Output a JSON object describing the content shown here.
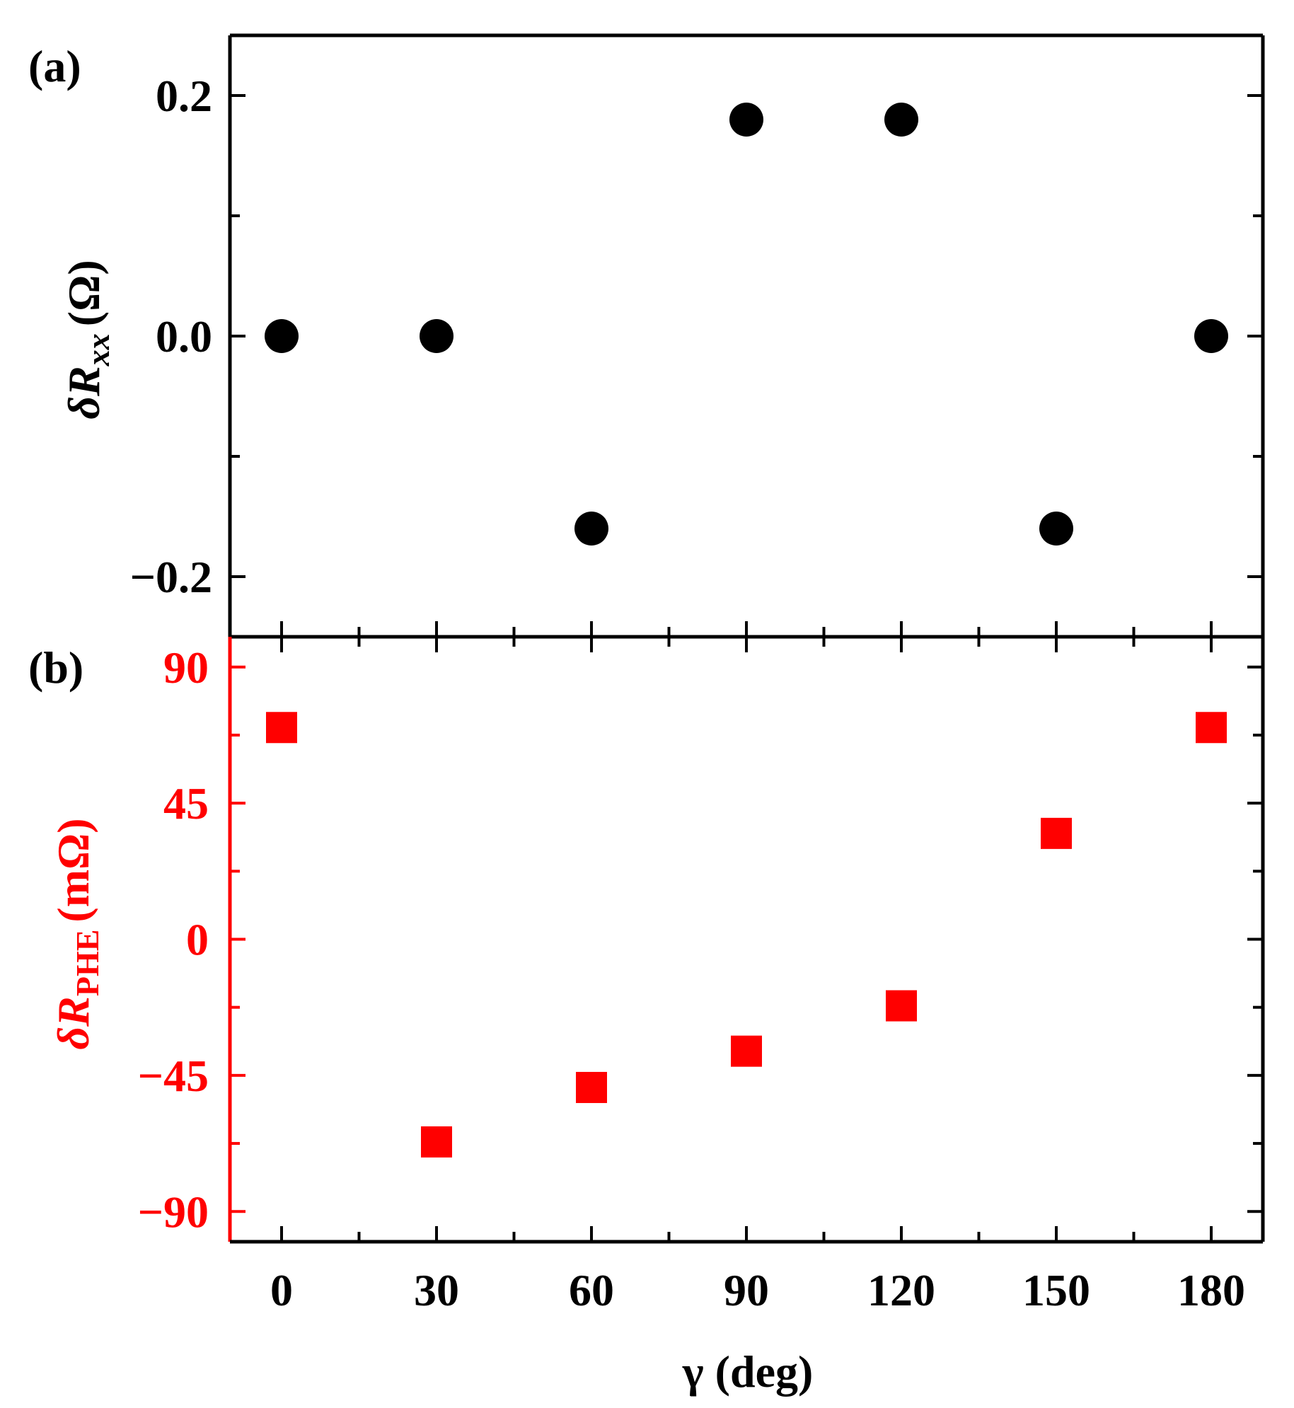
{
  "chart_data": [
    {
      "panel": "(a)",
      "type": "scatter",
      "marker": "circle",
      "color": "#000000",
      "ylabel_symbol": "δR",
      "ylabel_subscript": "xx",
      "ylabel_unit": "(Ω)",
      "ylim": [
        -0.25,
        0.25
      ],
      "yticks": [
        -0.2,
        0.0,
        0.2
      ],
      "ytick_labels": [
        "−0.2",
        "0.0",
        "0.2"
      ],
      "x": [
        0,
        30,
        60,
        90,
        120,
        150,
        180
      ],
      "y": [
        0.0,
        0.0,
        -0.16,
        0.18,
        0.18,
        -0.16,
        0.0
      ]
    },
    {
      "panel": "(b)",
      "type": "scatter",
      "marker": "square",
      "color": "#ff0000",
      "ylabel_symbol": "δR",
      "ylabel_subscript": "PHE",
      "ylabel_unit": "(mΩ)",
      "ylim": [
        -100,
        100
      ],
      "yticks": [
        -90,
        -45,
        0,
        45,
        90
      ],
      "ytick_labels": [
        "−90",
        "−45",
        "0",
        "45",
        "90"
      ],
      "x": [
        0,
        30,
        60,
        90,
        120,
        150,
        180
      ],
      "y": [
        70,
        -67,
        -49,
        -37,
        -22,
        35,
        70
      ],
      "xlabel": "γ (deg)",
      "xlim": [
        -10,
        190
      ],
      "xticks": [
        0,
        30,
        60,
        90,
        120,
        150,
        180
      ],
      "xtick_labels": [
        "0",
        "30",
        "60",
        "90",
        "120",
        "150",
        "180"
      ]
    }
  ]
}
